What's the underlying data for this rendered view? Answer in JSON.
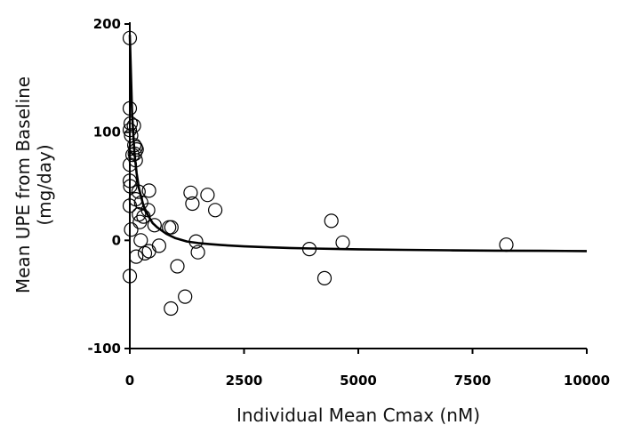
{
  "chart_data": {
    "type": "scatter",
    "title": "",
    "xlabel": "Individual Mean Cmax (nM)",
    "ylabel_line1": "Mean UPE from Baseline",
    "ylabel_line2": "(mg/day)",
    "xlim": [
      0,
      10000
    ],
    "ylim": [
      -100,
      200
    ],
    "x_ticks": [
      0,
      2500,
      5000,
      7500,
      10000
    ],
    "x_tick_labels": [
      "0",
      "2500",
      "5000",
      "7500",
      "10000"
    ],
    "y_ticks": [
      -100,
      0,
      100,
      200
    ],
    "y_tick_labels": [
      "-100",
      "0",
      "100",
      "200"
    ],
    "grid": false,
    "marker": "open-circle",
    "points": [
      {
        "x": 0,
        "y": 187
      },
      {
        "x": 0,
        "y": 122
      },
      {
        "x": 20,
        "y": 108
      },
      {
        "x": 0,
        "y": 102
      },
      {
        "x": 90,
        "y": 106
      },
      {
        "x": 30,
        "y": 97
      },
      {
        "x": 100,
        "y": 88
      },
      {
        "x": 130,
        "y": 86
      },
      {
        "x": 150,
        "y": 84
      },
      {
        "x": 110,
        "y": 80
      },
      {
        "x": 60,
        "y": 79
      },
      {
        "x": 130,
        "y": 74
      },
      {
        "x": 0,
        "y": 70
      },
      {
        "x": 0,
        "y": 55
      },
      {
        "x": 10,
        "y": 50
      },
      {
        "x": 190,
        "y": 45
      },
      {
        "x": 420,
        "y": 46
      },
      {
        "x": 130,
        "y": 38
      },
      {
        "x": 250,
        "y": 35
      },
      {
        "x": 0,
        "y": 32
      },
      {
        "x": 400,
        "y": 28
      },
      {
        "x": 200,
        "y": 24
      },
      {
        "x": 300,
        "y": 22
      },
      {
        "x": 220,
        "y": 17
      },
      {
        "x": 30,
        "y": 10
      },
      {
        "x": 540,
        "y": 14
      },
      {
        "x": 860,
        "y": 12
      },
      {
        "x": 910,
        "y": 12
      },
      {
        "x": 240,
        "y": 0
      },
      {
        "x": 640,
        "y": -5
      },
      {
        "x": 140,
        "y": -15
      },
      {
        "x": 330,
        "y": -12
      },
      {
        "x": 420,
        "y": -10
      },
      {
        "x": 1040,
        "y": -24
      },
      {
        "x": 0,
        "y": -33
      },
      {
        "x": 1210,
        "y": -52
      },
      {
        "x": 900,
        "y": -63
      },
      {
        "x": 1330,
        "y": 44
      },
      {
        "x": 1700,
        "y": 42
      },
      {
        "x": 1370,
        "y": 34
      },
      {
        "x": 1870,
        "y": 28
      },
      {
        "x": 1450,
        "y": -1
      },
      {
        "x": 1490,
        "y": -11
      },
      {
        "x": 3930,
        "y": -8
      },
      {
        "x": 4410,
        "y": 18
      },
      {
        "x": 4660,
        "y": -2
      },
      {
        "x": 4260,
        "y": -35
      },
      {
        "x": 8240,
        "y": -4
      }
    ],
    "fit_curve": {
      "type": "line",
      "x": [
        0,
        50,
        100,
        150,
        200,
        300,
        400,
        500,
        600,
        800,
        1000,
        1250,
        1500,
        1750,
        2000,
        2500,
        3000,
        3500,
        4000,
        5000,
        6000,
        7000,
        8000,
        9000,
        10000
      ],
      "y": [
        190,
        117,
        82,
        62,
        48,
        32,
        23,
        16,
        12,
        6,
        2,
        -1,
        -2.5,
        -3.5,
        -4.3,
        -5.6,
        -6.4,
        -7,
        -7.5,
        -8.3,
        -8.8,
        -9.2,
        -9.5,
        -9.7,
        -9.9
      ]
    }
  }
}
